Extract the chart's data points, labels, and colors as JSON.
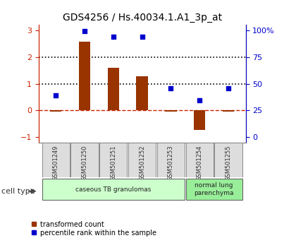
{
  "title": "GDS4256 / Hs.40034.1.A1_3p_at",
  "samples": [
    "GSM501249",
    "GSM501250",
    "GSM501251",
    "GSM501252",
    "GSM501253",
    "GSM501254",
    "GSM501255"
  ],
  "red_bars": [
    -0.05,
    2.57,
    1.6,
    1.28,
    -0.05,
    -0.72,
    -0.03
  ],
  "blue_dots": [
    0.57,
    2.97,
    2.75,
    2.75,
    0.82,
    0.38,
    0.82
  ],
  "ylim_left": [
    -1.2,
    3.2
  ],
  "ylim_right": [
    -5,
    105
  ],
  "yticks_left": [
    -1,
    0,
    1,
    2,
    3
  ],
  "yticks_right": [
    0,
    25,
    50,
    75,
    100
  ],
  "ytick_labels_right": [
    "0",
    "25",
    "50",
    "75",
    "100%"
  ],
  "hlines": [
    0,
    1,
    2
  ],
  "hline_styles": [
    "dashed",
    "dotted",
    "dotted"
  ],
  "hline_colors": [
    "#cc2200",
    "#000000",
    "#000000"
  ],
  "bar_color": "#993300",
  "dot_color": "#0000cc",
  "cell_groups": [
    {
      "label": "caseous TB granulomas",
      "start": 0,
      "end": 5,
      "color": "#ccffcc"
    },
    {
      "label": "normal lung\nparenchyma",
      "start": 5,
      "end": 7,
      "color": "#99ee99"
    }
  ],
  "cell_type_label": "cell type",
  "legend_red": "transformed count",
  "legend_blue": "percentile rank within the sample",
  "bg_color": "#ffffff",
  "plot_bg": "#ffffff",
  "tick_color_left": "#cc2200",
  "tick_color_right": "#0000cc",
  "bar_width": 0.4
}
